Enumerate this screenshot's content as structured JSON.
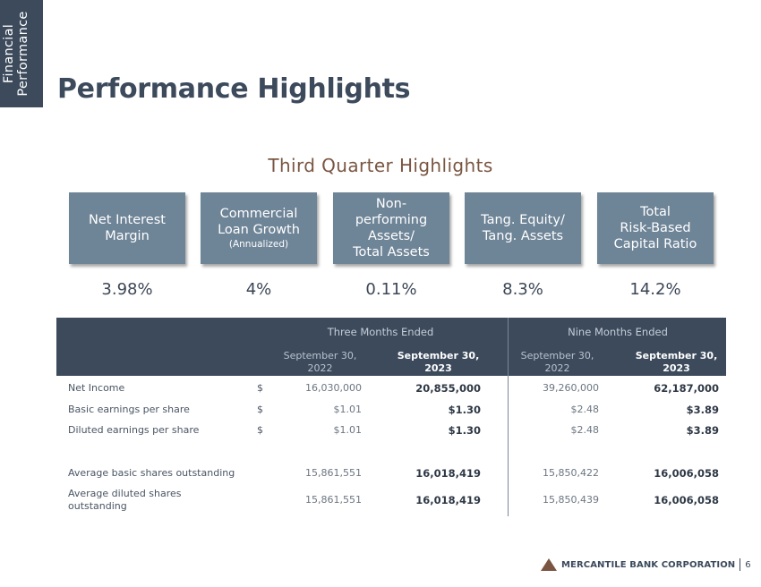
{
  "side_tab": {
    "line1": "Financial",
    "line2": "Performance"
  },
  "title": "Performance Highlights",
  "subtitle": "Third Quarter Highlights",
  "highlights": [
    {
      "lines": [
        "Net Interest",
        "Margin"
      ],
      "note": "",
      "value": "3.98%"
    },
    {
      "lines": [
        "Commercial",
        "Loan Growth"
      ],
      "note": "(Annualized)",
      "value": "4%"
    },
    {
      "lines": [
        "Non-",
        "performing",
        "Assets/",
        "Total Assets"
      ],
      "note": "",
      "value": "0.11%"
    },
    {
      "lines": [
        "Tang. Equity/",
        "Tang. Assets"
      ],
      "note": "",
      "value": "8.3%"
    },
    {
      "lines": [
        "Total",
        "Risk-Based",
        "Capital Ratio"
      ],
      "note": "",
      "value": "14.2%"
    }
  ],
  "table": {
    "group1": "Three Months Ended",
    "group2": "Nine Months Ended",
    "columns": [
      {
        "line1": "September 30,",
        "line2": "2022"
      },
      {
        "line1": "September 30,",
        "line2": "2023"
      },
      {
        "line1": "September 30,",
        "line2": "2022"
      },
      {
        "line1": "September 30,",
        "line2": "2023"
      }
    ],
    "rows": [
      {
        "label": "Net Income",
        "label2": "",
        "dollar": "$",
        "values": [
          "16,030,000",
          "20,855,000",
          "39,260,000",
          "62,187,000"
        ]
      },
      {
        "label": "Basic earnings per share",
        "label2": "",
        "dollar": "$",
        "values": [
          "$1.01",
          "$1.30",
          "$2.48",
          "$3.89"
        ]
      },
      {
        "label": "Diluted earnings per share",
        "label2": "",
        "dollar": "$",
        "values": [
          "$1.01",
          "$1.30",
          "$2.48",
          "$3.89"
        ]
      },
      {
        "label": "Average basic shares outstanding",
        "label2": "",
        "dollar": "",
        "values": [
          "15,861,551",
          "16,018,419",
          "15,850,422",
          "16,006,058"
        ]
      },
      {
        "label": "Average diluted shares",
        "label2": "outstanding",
        "dollar": "",
        "values": [
          "15,861,551",
          "16,018,419",
          "15,850,439",
          "16,006,058"
        ]
      }
    ]
  },
  "footer": {
    "company": "MERCANTILE BANK CORPORATION",
    "page": "6"
  },
  "colors": {
    "navy": "#3c4a5c",
    "box": "#6e8497",
    "brown": "#7a5642"
  }
}
